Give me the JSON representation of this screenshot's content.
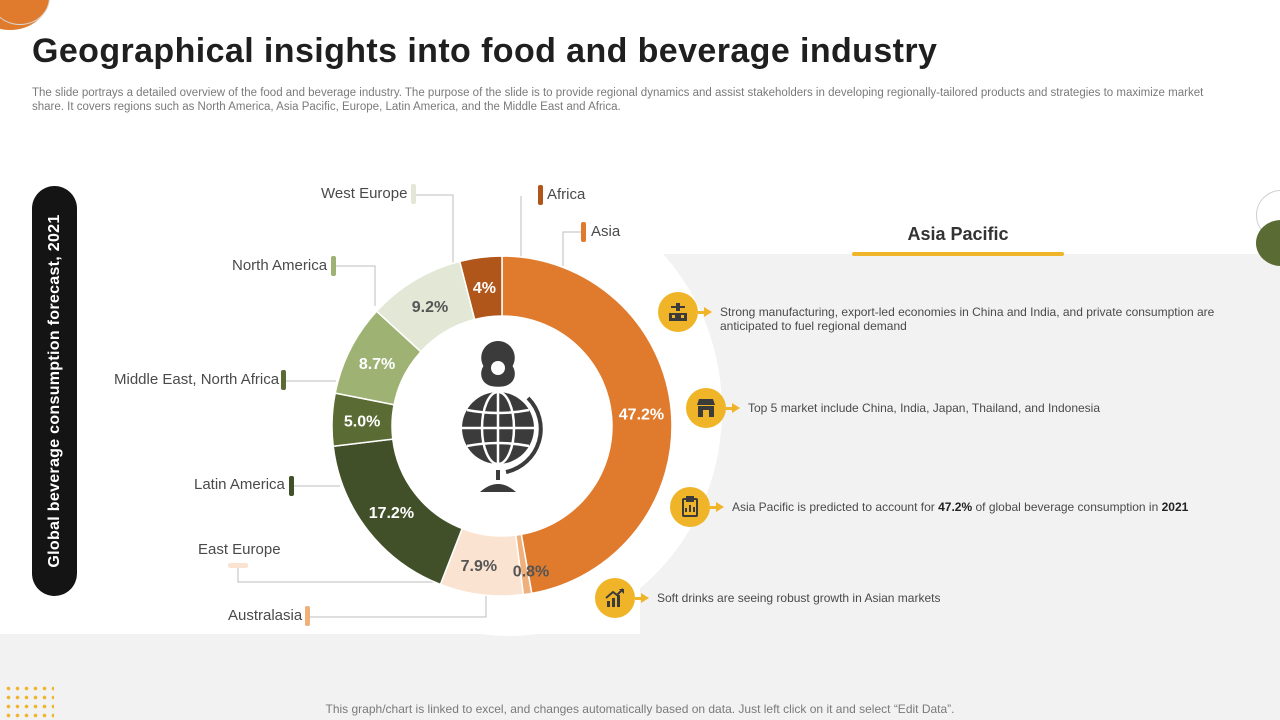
{
  "slide": {
    "title": "Geographical insights into food and beverage industry",
    "description": "The slide portrays a detailed overview of the food and beverage industry. The purpose of the slide is to provide regional dynamics and assist stakeholders in developing regionally-tailored products and strategies to maximize market share. It covers regions such as North America, Asia Pacific, Europe, Latin America, and the Middle East and Africa.",
    "footer": "This graph/chart is linked to excel,  and changes automatically based on data. Just left click on it and select “Edit Data”."
  },
  "chart_data": {
    "type": "pie",
    "donut": true,
    "title": "Global beverage consumption forecast, 2021",
    "unit": "%",
    "slices": [
      {
        "label": "Asia",
        "value": 47.2,
        "display": "47.2%",
        "color": "#e07a2c"
      },
      {
        "label": "Australasia",
        "value": 0.8,
        "display": "0.8%",
        "color": "#f0b07c"
      },
      {
        "label": "East Europe",
        "value": 7.9,
        "display": "7.9%",
        "color": "#fbe3d1"
      },
      {
        "label": "Latin America",
        "value": 17.2,
        "display": "17.2%",
        "color": "#415029"
      },
      {
        "label": "Middle East, North Africa",
        "value": 5.0,
        "display": "5.0%",
        "color": "#5a6b34"
      },
      {
        "label": "North America",
        "value": 8.7,
        "display": "8.7%",
        "color": "#9eb373"
      },
      {
        "label": "West Europe",
        "value": 9.2,
        "display": "9.2%",
        "color": "#e2e8d5"
      },
      {
        "label": "Africa",
        "value": 4.0,
        "display": "4%",
        "color": "#b1561a"
      }
    ]
  },
  "center_icon": "globe-location-icon",
  "asia_pacific": {
    "heading": "Asia Pacific",
    "points": [
      {
        "icon": "factory-icon",
        "text_html": "Strong manufacturing, export-led economies in China and India, and private consumption are anticipated to fuel regional demand"
      },
      {
        "icon": "store-icon",
        "text_html": "Top 5 market include China, India, Japan, Thailand, and Indonesia"
      },
      {
        "icon": "report-chart-icon",
        "text_html": "Asia Pacific is predicted to account for <b>47.2%</b> of global beverage consumption in <b>2021</b>"
      },
      {
        "icon": "growth-chart-icon",
        "text_html": "Soft drinks are seeing robust growth in Asian markets"
      }
    ]
  }
}
